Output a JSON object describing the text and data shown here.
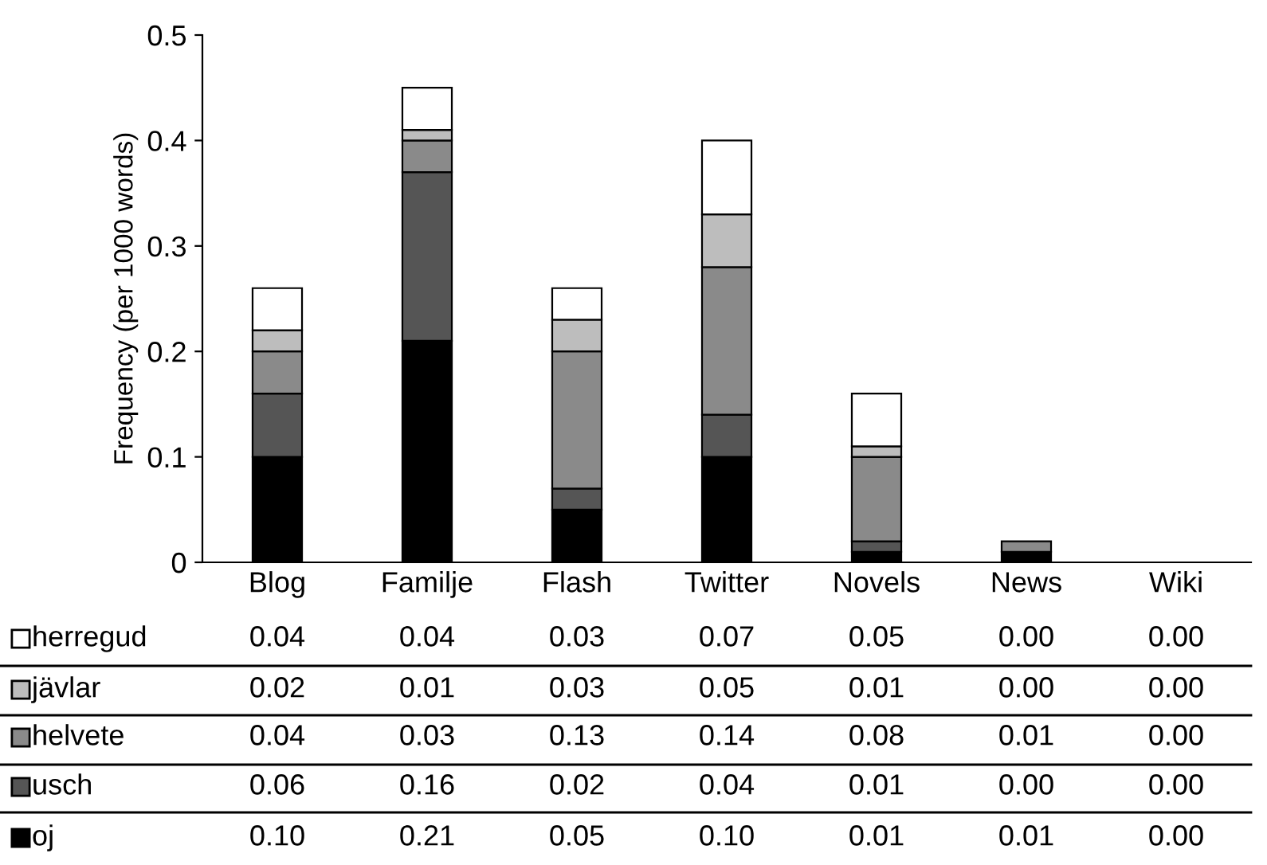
{
  "chart_data": {
    "type": "bar",
    "stacked": true,
    "ylabel": "Frequency (per 1000 words)",
    "categories": [
      "Blog",
      "Familje",
      "Flash",
      "Twitter",
      "Novels",
      "News",
      "Wiki"
    ],
    "series": [
      {
        "name": "oj",
        "color": "#000000",
        "values": [
          0.1,
          0.21,
          0.05,
          0.1,
          0.01,
          0.01,
          0.0
        ],
        "value_labels": [
          "0.10",
          "0.21",
          "0.05",
          "0.10",
          "0.01",
          "0.01",
          "0.00"
        ]
      },
      {
        "name": "usch",
        "color": "#555555",
        "values": [
          0.06,
          0.16,
          0.02,
          0.04,
          0.01,
          0.0,
          0.0
        ],
        "value_labels": [
          "0.06",
          "0.16",
          "0.02",
          "0.04",
          "0.01",
          "0.00",
          "0.00"
        ]
      },
      {
        "name": "helvete",
        "color": "#8a8a8a",
        "values": [
          0.04,
          0.03,
          0.13,
          0.14,
          0.08,
          0.01,
          0.0
        ],
        "value_labels": [
          "0.04",
          "0.03",
          "0.13",
          "0.14",
          "0.08",
          "0.01",
          "0.00"
        ]
      },
      {
        "name": "jävlar",
        "color": "#bdbdbd",
        "values": [
          0.02,
          0.01,
          0.03,
          0.05,
          0.01,
          0.0,
          0.0
        ],
        "value_labels": [
          "0.02",
          "0.01",
          "0.03",
          "0.05",
          "0.01",
          "0.00",
          "0.00"
        ]
      },
      {
        "name": "herregud",
        "color": "#ffffff",
        "values": [
          0.04,
          0.04,
          0.03,
          0.07,
          0.05,
          0.0,
          0.0
        ],
        "value_labels": [
          "0.04",
          "0.04",
          "0.03",
          "0.07",
          "0.05",
          "0.00",
          "0.00"
        ]
      }
    ],
    "ylim": [
      0,
      0.5
    ],
    "yticks": [
      0,
      0.1,
      0.2,
      0.3,
      0.4,
      0.5
    ],
    "grid": false,
    "legend": "bottom"
  }
}
